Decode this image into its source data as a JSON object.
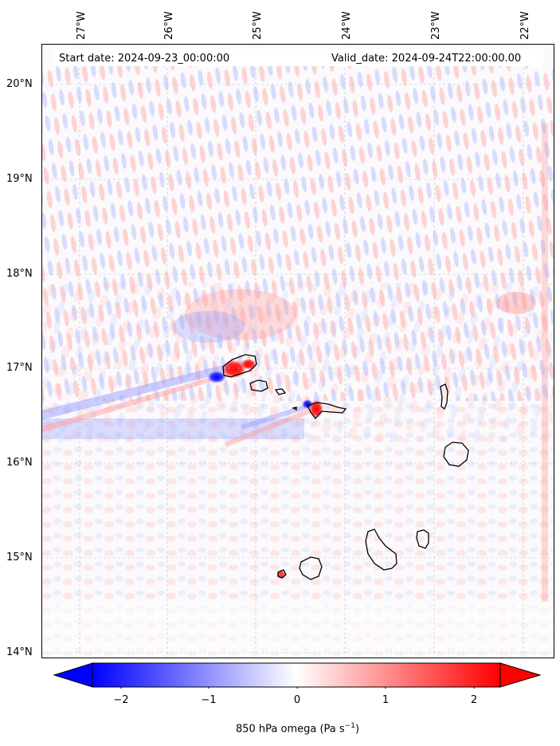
{
  "header": {
    "start_date": "Start date: 2024-09-23_00:00:00",
    "valid_date": "Valid_date: 2024-09-24T22:00:00.00"
  },
  "lon_labels": [
    "27°W",
    "26°W",
    "25°W",
    "24°W",
    "23°W",
    "22°W"
  ],
  "lat_labels": [
    "20°N",
    "19°N",
    "18°N",
    "17°N",
    "16°N",
    "15°N",
    "14°N"
  ],
  "colorbar": {
    "ticks": [
      "−2",
      "−1",
      "0",
      "1",
      "2"
    ],
    "label": "850 hPa omega (Pa s",
    "label_sup": "−1",
    "label_end": ")",
    "min": -2.6,
    "max": 2.6,
    "colors": {
      "neg": "#0000ff",
      "mid": "#ffffff",
      "pos": "#ff0000"
    }
  },
  "chart_data": {
    "type": "heatmap",
    "variable": "850 hPa omega",
    "units": "Pa s^-1",
    "colormap": "bwr",
    "lon_range": [
      -27.5,
      -21.8
    ],
    "lat_range": [
      13.9,
      20.45
    ],
    "color_range": [
      -2.6,
      2.6
    ],
    "grid": true
  }
}
